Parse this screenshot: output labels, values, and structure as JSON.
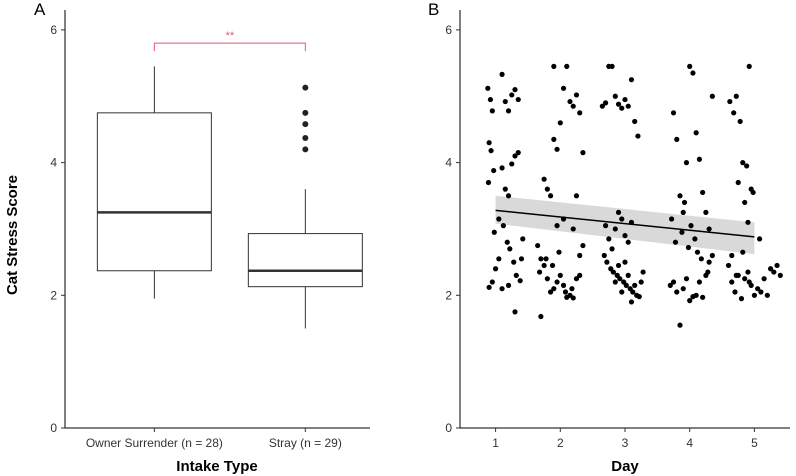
{
  "chart_data": [
    {
      "panel": "A",
      "type": "box",
      "xlabel": "Intake Type",
      "ylabel": "Cat Stress Score",
      "ylim": [
        0,
        6.3
      ],
      "yticks": [
        "0",
        "2",
        "4",
        "6"
      ],
      "categories": [
        "Owner Surrender (n = 28)",
        "Stray (n = 29)"
      ],
      "boxes": [
        {
          "whisker_low": 1.95,
          "q1": 2.37,
          "median": 3.25,
          "q3": 4.75,
          "whisker_high": 5.45,
          "outliers": []
        },
        {
          "whisker_low": 1.5,
          "q1": 2.13,
          "median": 2.37,
          "q3": 2.93,
          "whisker_high": 3.6,
          "outliers": [
            4.2,
            4.37,
            4.58,
            4.75,
            5.13
          ]
        }
      ],
      "significance": {
        "label": "**",
        "between": [
          0,
          1
        ],
        "y": 5.8
      }
    },
    {
      "panel": "B",
      "type": "scatter",
      "xlabel": "Day",
      "ylabel": "",
      "xlim": [
        0.45,
        5.55
      ],
      "ylim": [
        0,
        6.3
      ],
      "xticks": [
        "1",
        "2",
        "3",
        "4",
        "5"
      ],
      "yticks": [
        "0",
        "2",
        "4",
        "6"
      ],
      "trend": {
        "x": [
          1,
          5
        ],
        "y": [
          3.28,
          2.88
        ],
        "ci_low_start": 3.08,
        "ci_high_start": 3.5,
        "ci_low_end": 2.62,
        "ci_high_end": 3.1
      },
      "points": [
        [
          0.88,
          5.12
        ],
        [
          0.92,
          4.95
        ],
        [
          0.95,
          4.78
        ],
        [
          0.9,
          4.3
        ],
        [
          0.93,
          4.18
        ],
        [
          0.97,
          3.88
        ],
        [
          0.89,
          3.7
        ],
        [
          0.95,
          2.2
        ],
        [
          0.9,
          2.12
        ],
        [
          1.0,
          2.4
        ],
        [
          1.05,
          2.55
        ],
        [
          0.98,
          2.95
        ],
        [
          1.1,
          5.33
        ],
        [
          1.15,
          4.92
        ],
        [
          1.2,
          4.78
        ],
        [
          1.25,
          5.02
        ],
        [
          1.3,
          5.1
        ],
        [
          1.35,
          4.95
        ],
        [
          1.1,
          3.92
        ],
        [
          1.15,
          3.6
        ],
        [
          1.2,
          3.5
        ],
        [
          1.25,
          3.98
        ],
        [
          1.3,
          4.1
        ],
        [
          1.35,
          4.15
        ],
        [
          1.05,
          3.15
        ],
        [
          1.12,
          3.05
        ],
        [
          1.18,
          2.8
        ],
        [
          1.22,
          2.7
        ],
        [
          1.28,
          2.5
        ],
        [
          1.32,
          2.3
        ],
        [
          1.38,
          2.22
        ],
        [
          1.1,
          2.1
        ],
        [
          1.2,
          2.15
        ],
        [
          1.3,
          1.75
        ],
        [
          1.4,
          2.55
        ],
        [
          1.42,
          2.85
        ],
        [
          1.65,
          2.75
        ],
        [
          1.7,
          2.55
        ],
        [
          1.75,
          2.45
        ],
        [
          1.8,
          2.25
        ],
        [
          1.85,
          2.05
        ],
        [
          1.9,
          2.1
        ],
        [
          1.95,
          2.2
        ],
        [
          2.0,
          2.3
        ],
        [
          2.05,
          2.15
        ],
        [
          2.1,
          1.97
        ],
        [
          2.15,
          2.0
        ],
        [
          2.2,
          1.96
        ],
        [
          2.25,
          2.25
        ],
        [
          2.3,
          2.3
        ],
        [
          1.7,
          1.68
        ],
        [
          1.75,
          3.75
        ],
        [
          1.8,
          3.6
        ],
        [
          1.85,
          3.5
        ],
        [
          1.9,
          4.35
        ],
        [
          1.95,
          4.2
        ],
        [
          2.0,
          4.6
        ],
        [
          1.9,
          5.45
        ],
        [
          2.05,
          5.12
        ],
        [
          2.1,
          5.45
        ],
        [
          2.15,
          4.92
        ],
        [
          2.2,
          4.85
        ],
        [
          2.25,
          5.02
        ],
        [
          2.3,
          4.75
        ],
        [
          2.35,
          4.15
        ],
        [
          1.95,
          3.05
        ],
        [
          2.05,
          3.15
        ],
        [
          2.2,
          3.0
        ],
        [
          2.25,
          3.5
        ],
        [
          1.68,
          2.35
        ],
        [
          1.78,
          2.55
        ],
        [
          1.88,
          2.45
        ],
        [
          1.98,
          2.65
        ],
        [
          2.08,
          2.05
        ],
        [
          2.18,
          2.1
        ],
        [
          2.3,
          2.6
        ],
        [
          2.35,
          2.75
        ],
        [
          2.65,
          4.85
        ],
        [
          2.7,
          4.9
        ],
        [
          2.75,
          5.45
        ],
        [
          2.8,
          5.45
        ],
        [
          2.85,
          5.0
        ],
        [
          2.9,
          4.88
        ],
        [
          2.95,
          4.82
        ],
        [
          3.0,
          4.95
        ],
        [
          3.05,
          4.85
        ],
        [
          3.1,
          5.25
        ],
        [
          3.15,
          4.62
        ],
        [
          3.2,
          4.4
        ],
        [
          2.7,
          3.05
        ],
        [
          2.75,
          2.85
        ],
        [
          2.8,
          2.7
        ],
        [
          2.85,
          3.0
        ],
        [
          2.9,
          3.25
        ],
        [
          2.95,
          3.15
        ],
        [
          3.0,
          2.9
        ],
        [
          3.05,
          2.8
        ],
        [
          3.1,
          3.1
        ],
        [
          2.68,
          2.6
        ],
        [
          2.72,
          2.5
        ],
        [
          2.78,
          2.4
        ],
        [
          2.82,
          2.35
        ],
        [
          2.88,
          2.3
        ],
        [
          2.92,
          2.25
        ],
        [
          2.98,
          2.2
        ],
        [
          3.02,
          2.15
        ],
        [
          3.08,
          2.1
        ],
        [
          3.12,
          2.05
        ],
        [
          3.18,
          2.0
        ],
        [
          3.22,
          1.98
        ],
        [
          3.25,
          2.2
        ],
        [
          3.28,
          2.35
        ],
        [
          2.95,
          2.05
        ],
        [
          3.1,
          1.9
        ],
        [
          3.15,
          2.15
        ],
        [
          3.0,
          2.5
        ],
        [
          2.85,
          2.2
        ],
        [
          3.05,
          2.3
        ],
        [
          2.9,
          2.45
        ],
        [
          3.75,
          4.75
        ],
        [
          3.8,
          4.35
        ],
        [
          3.85,
          3.5
        ],
        [
          3.9,
          3.25
        ],
        [
          3.95,
          4.0
        ],
        [
          4.0,
          5.45
        ],
        [
          4.05,
          5.35
        ],
        [
          4.1,
          4.45
        ],
        [
          4.15,
          4.05
        ],
        [
          4.2,
          3.55
        ],
        [
          4.25,
          3.25
        ],
        [
          4.3,
          3.0
        ],
        [
          4.35,
          5.0
        ],
        [
          3.7,
          2.15
        ],
        [
          3.75,
          2.2
        ],
        [
          3.8,
          2.05
        ],
        [
          3.85,
          1.55
        ],
        [
          3.9,
          2.1
        ],
        [
          3.95,
          2.25
        ],
        [
          4.0,
          1.92
        ],
        [
          4.05,
          1.98
        ],
        [
          4.1,
          2.0
        ],
        [
          4.15,
          2.2
        ],
        [
          4.2,
          1.97
        ],
        [
          4.25,
          2.3
        ],
        [
          4.3,
          2.5
        ],
        [
          4.35,
          2.6
        ],
        [
          3.78,
          2.8
        ],
        [
          3.88,
          2.95
        ],
        [
          3.98,
          2.72
        ],
        [
          4.08,
          2.85
        ],
        [
          4.18,
          2.55
        ],
        [
          4.28,
          2.35
        ],
        [
          3.72,
          3.15
        ],
        [
          3.92,
          3.4
        ],
        [
          4.02,
          3.05
        ],
        [
          4.12,
          2.65
        ],
        [
          4.62,
          4.92
        ],
        [
          4.68,
          4.75
        ],
        [
          4.72,
          5.0
        ],
        [
          4.78,
          4.62
        ],
        [
          4.82,
          4.0
        ],
        [
          4.88,
          3.95
        ],
        [
          4.92,
          5.45
        ],
        [
          4.95,
          3.6
        ],
        [
          4.98,
          3.55
        ],
        [
          4.6,
          2.45
        ],
        [
          4.65,
          2.2
        ],
        [
          4.7,
          2.05
        ],
        [
          4.75,
          2.3
        ],
        [
          4.8,
          1.95
        ],
        [
          4.85,
          2.25
        ],
        [
          4.9,
          2.35
        ],
        [
          4.95,
          2.15
        ],
        [
          5.0,
          2.0
        ],
        [
          5.05,
          2.1
        ],
        [
          5.1,
          2.05
        ],
        [
          5.15,
          2.25
        ],
        [
          5.2,
          2.0
        ],
        [
          5.25,
          2.4
        ],
        [
          5.3,
          2.35
        ],
        [
          5.35,
          2.45
        ],
        [
          5.4,
          2.3
        ],
        [
          4.75,
          3.7
        ],
        [
          4.85,
          3.4
        ],
        [
          4.9,
          3.1
        ],
        [
          5.08,
          2.85
        ],
        [
          4.65,
          2.6
        ],
        [
          4.72,
          2.3
        ],
        [
          4.82,
          2.65
        ],
        [
          4.92,
          2.2
        ]
      ]
    }
  ]
}
